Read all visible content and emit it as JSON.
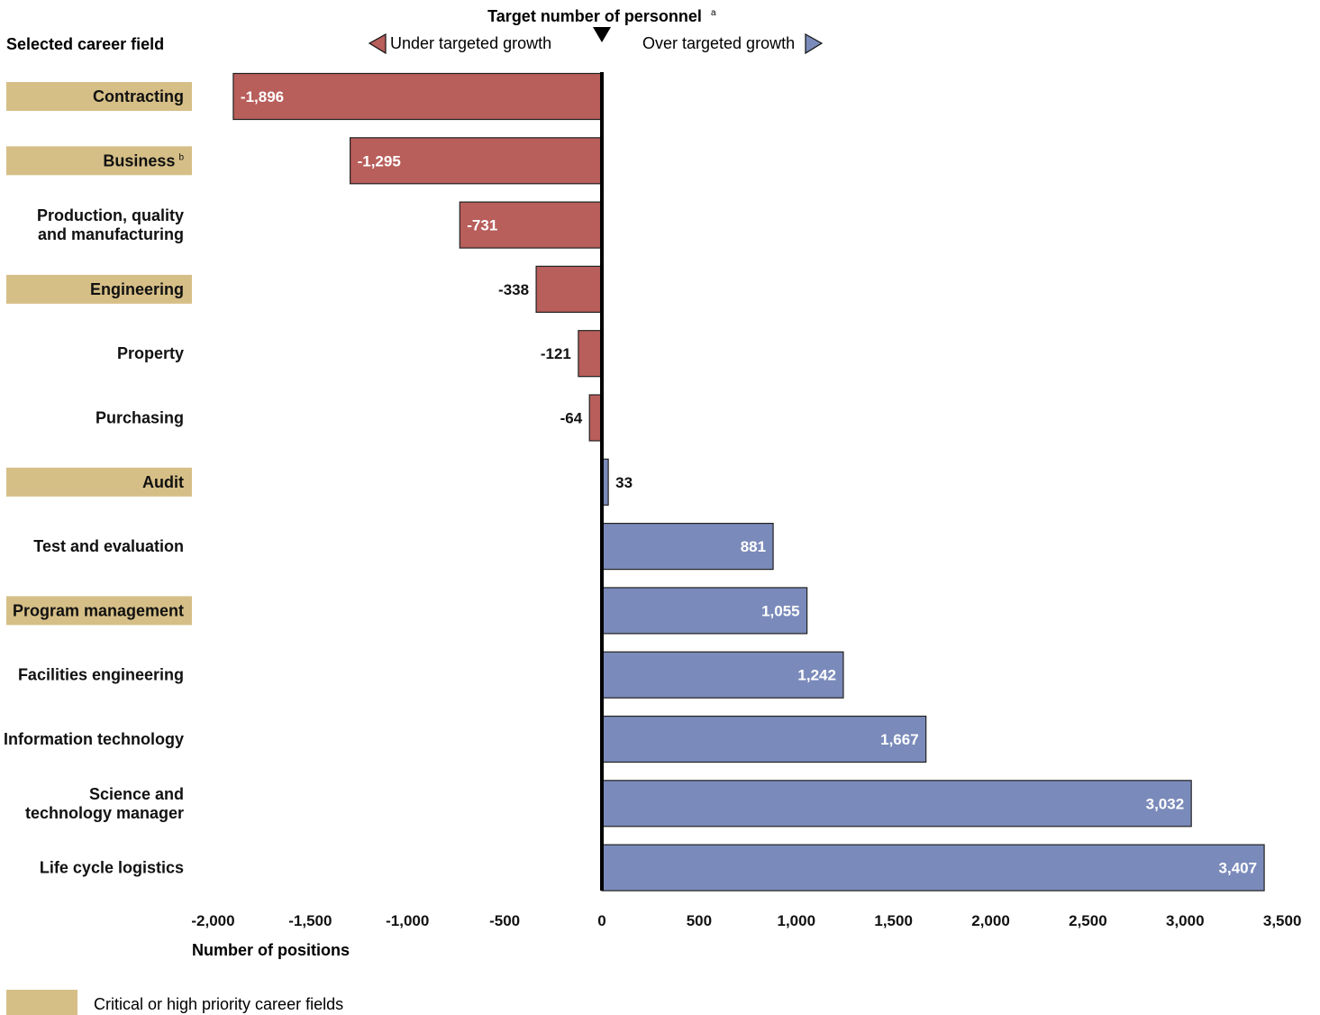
{
  "chart_data": {
    "type": "bar",
    "orientation": "horizontal",
    "title": "Target number of personnel",
    "title_note": "a",
    "category_axis_title": "Selected career field",
    "xlabel": "Number of positions",
    "under_label": "Under targeted growth",
    "over_label": "Over targeted growth",
    "xlim": [
      -2000,
      3500
    ],
    "xticks": [
      "-2,000",
      "-1,500",
      "-1,000",
      "-500",
      "0",
      "500",
      "1,000",
      "1,500",
      "2,000",
      "2,500",
      "3,000",
      "3,500"
    ],
    "xtick_values": [
      -2000,
      -1500,
      -1000,
      -500,
      0,
      500,
      1000,
      1500,
      2000,
      2500,
      3000,
      3500
    ],
    "categories": [
      {
        "label": "Contracting",
        "note": "",
        "value": -1896,
        "value_label": "-1,896",
        "highlight": true
      },
      {
        "label": "Business",
        "note": "b",
        "value": -1295,
        "value_label": "-1,295",
        "highlight": true
      },
      {
        "label": "Production, quality\nand manufacturing",
        "note": "",
        "value": -731,
        "value_label": "-731",
        "highlight": false
      },
      {
        "label": "Engineering",
        "note": "",
        "value": -338,
        "value_label": "-338",
        "highlight": true
      },
      {
        "label": "Property",
        "note": "",
        "value": -121,
        "value_label": "-121",
        "highlight": false
      },
      {
        "label": "Purchasing",
        "note": "",
        "value": -64,
        "value_label": "-64",
        "highlight": false
      },
      {
        "label": "Audit",
        "note": "",
        "value": 33,
        "value_label": "33",
        "highlight": true
      },
      {
        "label": "Test and evaluation",
        "note": "",
        "value": 881,
        "value_label": "881",
        "highlight": false
      },
      {
        "label": "Program management",
        "note": "",
        "value": 1055,
        "value_label": "1,055",
        "highlight": true
      },
      {
        "label": "Facilities engineering",
        "note": "",
        "value": 1242,
        "value_label": "1,242",
        "highlight": false
      },
      {
        "label": "Information technology",
        "note": "",
        "value": 1667,
        "value_label": "1,667",
        "highlight": false
      },
      {
        "label": "Science and\ntechnology manager",
        "note": "",
        "value": 3032,
        "value_label": "3,032",
        "highlight": false
      },
      {
        "label": "Life cycle logistics",
        "note": "",
        "value": 3407,
        "value_label": "3,407",
        "highlight": false
      }
    ],
    "legend": [
      {
        "label": "Critical or high priority career fields",
        "color": "#d6bf87"
      }
    ],
    "colors": {
      "negative": "#b85e5b",
      "positive": "#7a8aba",
      "highlight": "#d6bf87",
      "axis": "#000000"
    }
  }
}
